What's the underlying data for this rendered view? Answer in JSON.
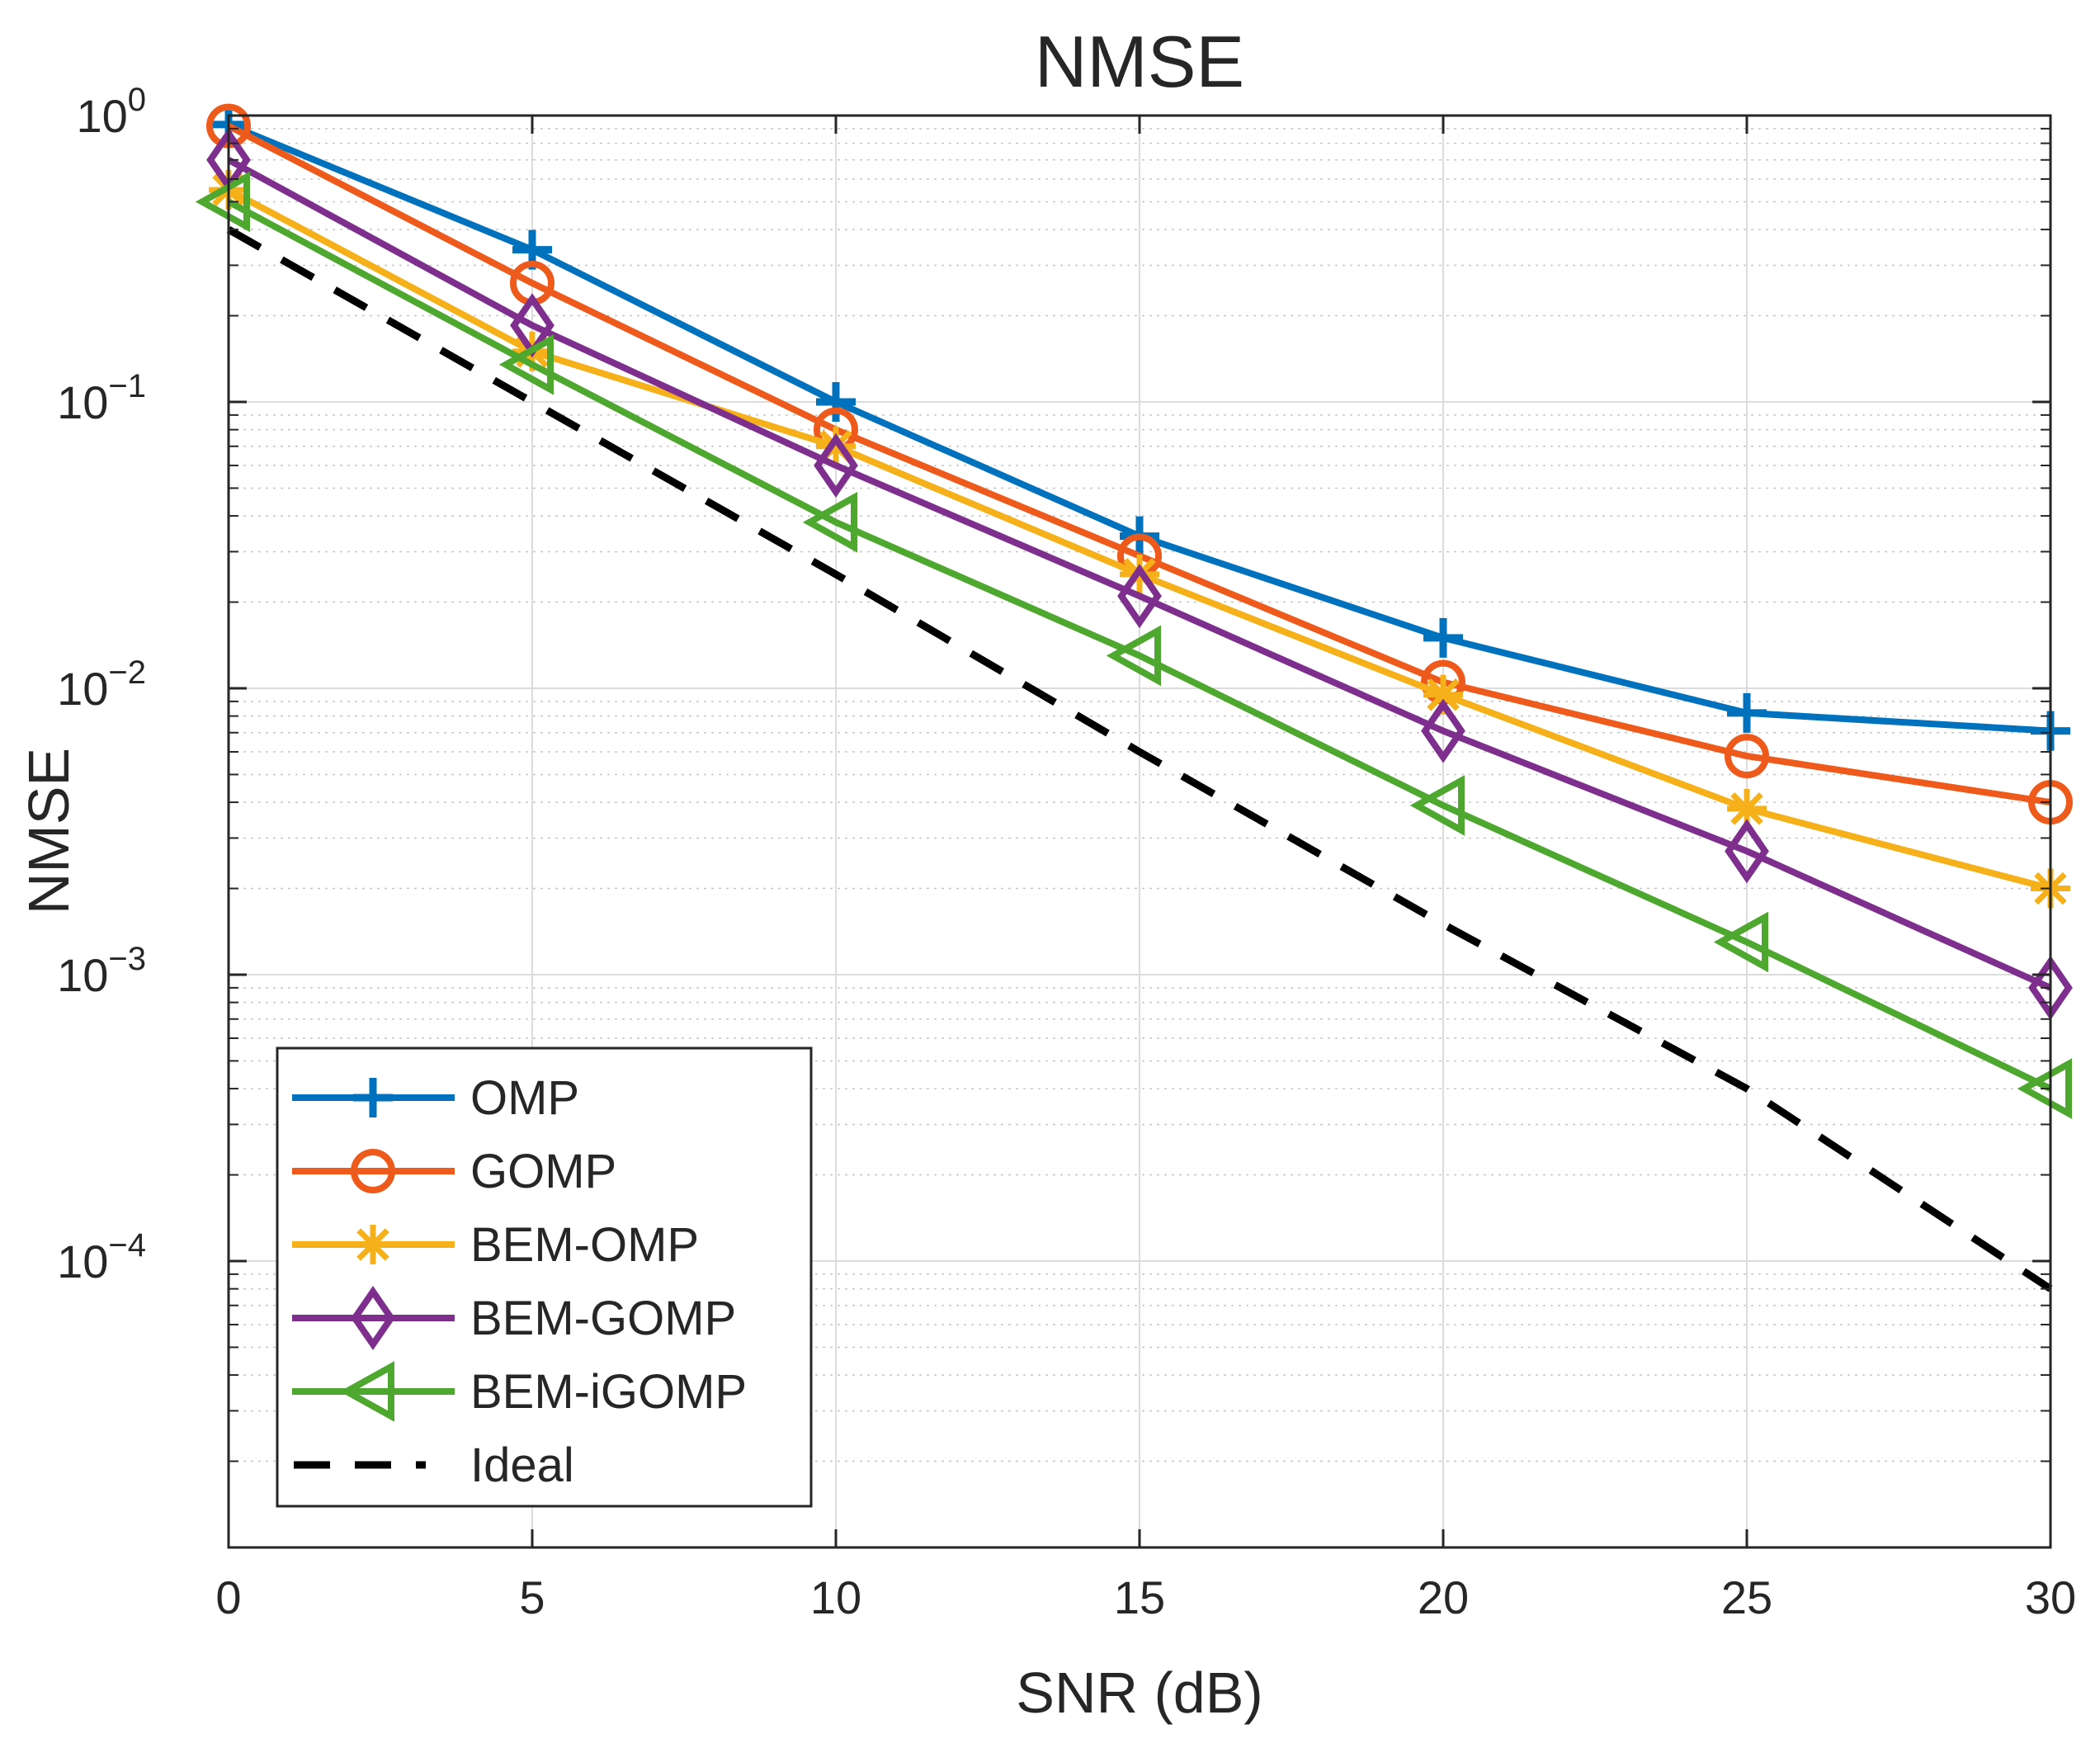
{
  "chart_data": {
    "type": "line",
    "title": "NMSE",
    "xlabel": "SNR (dB)",
    "ylabel": "NMSE",
    "xlim": [
      0,
      30
    ],
    "ylim": [
      1e-05,
      1
    ],
    "yscale": "log",
    "grid": true,
    "legend_position": "bottom-left",
    "x": [
      0,
      5,
      10,
      15,
      20,
      25,
      30
    ],
    "x_tick_labels": [
      "0",
      "5",
      "10",
      "15",
      "20",
      "25",
      "30"
    ],
    "y_ticks": [
      {
        "value": 1,
        "base": "10",
        "exp": "0"
      },
      {
        "value": 0.1,
        "base": "10",
        "exp": "−1"
      },
      {
        "value": 0.01,
        "base": "10",
        "exp": "−2"
      },
      {
        "value": 0.001,
        "base": "10",
        "exp": "−3"
      },
      {
        "value": 0.0001,
        "base": "10",
        "exp": "−4"
      }
    ],
    "series": [
      {
        "name": "OMP",
        "color": "#0072BD",
        "marker": "plus",
        "dash": "solid",
        "values": [
          0.93,
          0.34,
          0.1,
          0.034,
          0.015,
          0.0082,
          0.0071
        ]
      },
      {
        "name": "GOMP",
        "color": "#EE5A1B",
        "marker": "circle",
        "dash": "solid",
        "values": [
          0.92,
          0.26,
          0.08,
          0.029,
          0.0105,
          0.0058,
          0.004
        ]
      },
      {
        "name": "BEM-OMP",
        "color": "#F5B01A",
        "marker": "asterisk",
        "dash": "solid",
        "values": [
          0.55,
          0.15,
          0.07,
          0.025,
          0.0095,
          0.0038,
          0.002
        ]
      },
      {
        "name": "BEM-GOMP",
        "color": "#7E2F8E",
        "marker": "diamond",
        "dash": "solid",
        "values": [
          0.7,
          0.185,
          0.06,
          0.021,
          0.0071,
          0.0027,
          0.0009
        ]
      },
      {
        "name": "BEM-iGOMP",
        "color": "#4EA72E",
        "marker": "triangle-left",
        "dash": "solid",
        "values": [
          0.5,
          0.135,
          0.038,
          0.013,
          0.0039,
          0.0013,
          0.0004
        ]
      },
      {
        "name": "Ideal",
        "color": "#000000",
        "marker": "none",
        "dash": "dashed",
        "values": [
          0.4,
          0.1,
          0.025,
          0.006,
          0.0015,
          0.0004,
          8e-05
        ]
      }
    ]
  }
}
